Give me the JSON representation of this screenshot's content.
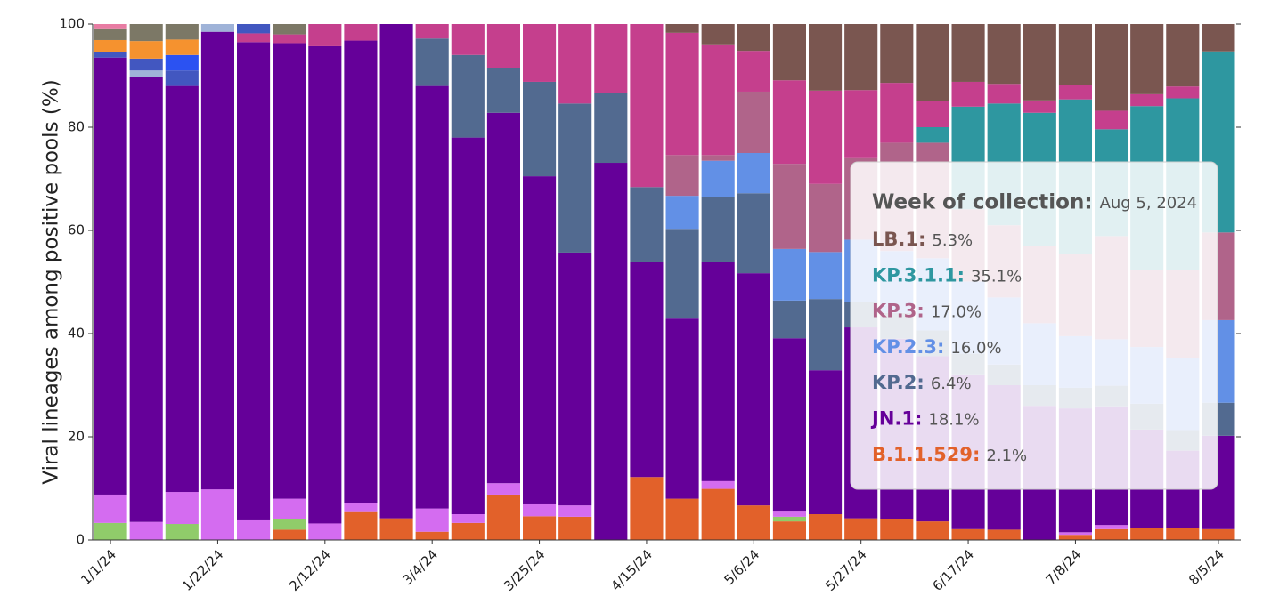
{
  "chart_data": {
    "type": "stacked-bar",
    "y_label": "Viral lineages among positive pools (%)",
    "categories": [
      "1/1/24",
      null,
      null,
      "1/22/24",
      null,
      null,
      "2/12/24",
      null,
      null,
      "3/4/24",
      null,
      null,
      "3/25/24",
      null,
      null,
      "4/15/24",
      null,
      null,
      "5/6/24",
      null,
      null,
      "5/27/24",
      null,
      null,
      "6/17/24",
      null,
      null,
      "7/8/24",
      null,
      null,
      null,
      "8/5/24"
    ],
    "ylim": [
      0,
      100
    ],
    "yticks": [
      0,
      20,
      40,
      60,
      80,
      100
    ],
    "series": [
      {
        "name": "B.1.1.529",
        "color": "#e2612a",
        "values": [
          0,
          0,
          0,
          0,
          0,
          2,
          0,
          5.4,
          4.2,
          1.6,
          3.3,
          8.8,
          4.6,
          4.5,
          0,
          12.2,
          8,
          9.9,
          6.7,
          3.6,
          5,
          4.2,
          4,
          3.6,
          2.1,
          2,
          0,
          1,
          2.1,
          2.4,
          2.3,
          2.1
        ],
        "value_labels": [
          null,
          null,
          null,
          null,
          null,
          null,
          null,
          null,
          null,
          null,
          null,
          null,
          null,
          null,
          null,
          null,
          null,
          null,
          null,
          null,
          null,
          null,
          null,
          null,
          null,
          null,
          null,
          null,
          null,
          null,
          null,
          "2.1%"
        ]
      },
      {
        "color": "#90cc6a",
        "values": [
          3.3,
          0,
          3.1,
          0,
          0,
          2.1,
          0,
          0,
          0,
          0,
          0,
          0,
          0,
          0,
          0,
          0,
          0,
          0,
          0,
          0.9,
          0,
          0,
          0,
          0,
          0,
          0,
          0,
          0,
          0,
          0,
          0,
          0
        ]
      },
      {
        "color": "#d46cf0",
        "values": [
          5.5,
          3.5,
          6.2,
          9.8,
          3.8,
          3.9,
          3.2,
          1.7,
          0,
          4.5,
          1.7,
          2.2,
          2.3,
          2.2,
          0,
          0,
          0,
          1.5,
          0,
          1,
          0,
          0,
          0,
          0,
          0,
          0,
          0,
          0.5,
          0.8,
          0,
          0,
          0
        ]
      },
      {
        "name": "JN.1",
        "color": "#650099",
        "values": [
          84.7,
          86.3,
          78.7,
          88.7,
          92.7,
          88.3,
          92.5,
          89.7,
          95.8,
          81.9,
          73,
          71.8,
          63.6,
          49,
          73.1,
          41.6,
          34.9,
          42.4,
          45,
          33.6,
          27.9,
          37,
          35,
          32,
          30,
          28,
          26,
          24,
          23,
          19,
          15,
          18.1
        ],
        "value_labels": [
          null,
          null,
          null,
          null,
          null,
          null,
          null,
          null,
          null,
          null,
          null,
          null,
          null,
          null,
          null,
          null,
          null,
          null,
          null,
          null,
          null,
          null,
          null,
          null,
          null,
          null,
          null,
          null,
          null,
          null,
          null,
          "18.1%"
        ]
      },
      {
        "name": "KP.2",
        "color": "#526a90",
        "values": [
          0,
          0,
          0,
          0,
          0,
          0,
          0,
          0,
          0,
          9.2,
          16,
          8.7,
          18.3,
          28.9,
          13.6,
          14.6,
          17.4,
          12.6,
          15.5,
          7.3,
          13.8,
          5,
          5,
          5,
          4,
          4,
          4,
          4,
          4,
          5,
          4,
          6.4
        ],
        "value_labels": [
          null,
          null,
          null,
          null,
          null,
          null,
          null,
          null,
          null,
          null,
          null,
          null,
          null,
          null,
          null,
          null,
          null,
          null,
          null,
          null,
          null,
          null,
          null,
          null,
          null,
          null,
          null,
          null,
          null,
          null,
          null,
          "6.4%"
        ]
      },
      {
        "name": "KP.2.3",
        "color": "#6290e6",
        "values": [
          0,
          0,
          0,
          0,
          0,
          0,
          0,
          0,
          0,
          0,
          0,
          0,
          0,
          0,
          0,
          0,
          6.4,
          7.1,
          7.8,
          10,
          9.1,
          12,
          12,
          14,
          14,
          13,
          12,
          10,
          9,
          11,
          14,
          16.0
        ],
        "value_labels": [
          null,
          null,
          null,
          null,
          null,
          null,
          null,
          null,
          null,
          null,
          null,
          null,
          null,
          null,
          null,
          null,
          null,
          null,
          null,
          null,
          null,
          null,
          null,
          null,
          null,
          null,
          null,
          null,
          null,
          null,
          null,
          "16.0%"
        ]
      },
      {
        "name": "KP.3",
        "color": "#b0648a",
        "values": [
          0,
          0,
          0,
          0,
          0,
          0,
          0,
          0,
          0,
          0,
          0,
          0,
          0,
          0,
          0,
          0,
          7.9,
          1.1,
          11.9,
          16.5,
          13.2,
          15.8,
          21,
          22.4,
          14,
          14,
          15,
          16,
          20,
          15,
          17,
          17.0
        ],
        "value_labels": [
          null,
          null,
          null,
          null,
          null,
          null,
          null,
          null,
          null,
          null,
          null,
          null,
          null,
          null,
          null,
          null,
          null,
          null,
          null,
          null,
          null,
          null,
          null,
          null,
          null,
          null,
          null,
          null,
          null,
          null,
          null,
          "17.0%"
        ]
      },
      {
        "name": "KP.3.1.1",
        "color": "#2e97a0",
        "values": [
          0,
          0,
          0,
          0,
          0,
          0,
          0,
          0,
          0,
          0,
          0,
          0,
          0,
          0,
          0,
          0,
          0,
          0,
          0,
          0,
          0,
          0,
          0,
          3,
          19.9,
          23.6,
          25.8,
          29.9,
          20.7,
          31.7,
          33.3,
          35.1
        ],
        "value_labels": [
          null,
          null,
          null,
          null,
          null,
          null,
          null,
          null,
          null,
          null,
          null,
          null,
          null,
          null,
          null,
          null,
          null,
          null,
          null,
          null,
          null,
          null,
          null,
          null,
          null,
          null,
          null,
          null,
          null,
          null,
          null,
          "35.1%"
        ]
      },
      {
        "color": "#c53f8d",
        "values": [
          0,
          0,
          0,
          0,
          1.7,
          1.7,
          4.3,
          3.2,
          0,
          2.8,
          6,
          8.5,
          11.2,
          15.4,
          13.3,
          31.6,
          23.7,
          21.3,
          7.9,
          16.2,
          18.1,
          13.2,
          11.6,
          5,
          4.8,
          3.8,
          2.4,
          2.8,
          3.6,
          2.3,
          2.3,
          0
        ]
      },
      {
        "name": "LB.1",
        "color": "#7a5650",
        "values": [
          0,
          0,
          0,
          0,
          0,
          0,
          0,
          0,
          0,
          0,
          0,
          0,
          0,
          0,
          0,
          0,
          1.7,
          4.1,
          5.2,
          10.9,
          12.9,
          12.8,
          11.4,
          15,
          11.2,
          11.6,
          14.8,
          11.8,
          16.8,
          13.6,
          12.1,
          5.3
        ],
        "value_labels": [
          null,
          null,
          null,
          null,
          null,
          null,
          null,
          null,
          null,
          null,
          null,
          null,
          null,
          null,
          null,
          null,
          null,
          null,
          null,
          null,
          null,
          null,
          null,
          null,
          null,
          null,
          null,
          null,
          null,
          null,
          null,
          "5.3%"
        ]
      },
      {
        "color": "#9fb3d8",
        "values": [
          0,
          1.2,
          0,
          1.5,
          0,
          0,
          0,
          0,
          0,
          0,
          0,
          0,
          0,
          0,
          0,
          0,
          0,
          0,
          0,
          0,
          0,
          0,
          0,
          0,
          0,
          0,
          0,
          0,
          0,
          0,
          0,
          0
        ]
      },
      {
        "color": "#4257c0",
        "values": [
          1,
          2.3,
          3,
          0,
          1.8,
          0,
          0,
          0,
          0,
          0,
          0,
          0,
          0,
          0,
          0,
          0,
          0,
          0,
          0,
          0,
          0,
          0,
          0,
          0,
          0,
          0,
          0,
          0,
          0,
          0,
          0,
          0
        ]
      },
      {
        "color": "#2b52f2",
        "values": [
          0,
          0,
          3,
          0,
          0,
          0,
          0,
          0,
          0,
          0,
          0,
          0,
          0,
          0,
          0,
          0,
          0,
          0,
          0,
          0,
          0,
          0,
          0,
          0,
          0,
          0,
          0,
          0,
          0,
          0,
          0,
          0
        ]
      },
      {
        "color": "#f5922f",
        "values": [
          2.4,
          3.4,
          3,
          0,
          0,
          0,
          0,
          0,
          0,
          0,
          0,
          0,
          0,
          0,
          0,
          0,
          0,
          0,
          0,
          0,
          0,
          0,
          0,
          0,
          0,
          0,
          0,
          0,
          0,
          0,
          0,
          0
        ]
      },
      {
        "color": "#7c7866",
        "values": [
          2.1,
          3.3,
          3,
          0,
          0,
          2,
          0,
          0,
          0,
          0,
          0,
          0,
          0,
          0,
          0,
          0,
          0,
          0,
          0,
          0,
          0,
          0,
          0,
          0,
          0,
          0,
          0,
          0,
          0,
          0,
          0,
          0
        ]
      },
      {
        "color": "#e87ca3",
        "values": [
          1,
          0,
          0,
          0,
          0,
          0,
          0,
          0,
          0,
          0,
          0,
          0,
          0,
          0,
          0,
          0,
          0,
          0,
          0,
          0,
          0,
          0,
          0,
          0,
          0,
          0,
          0,
          0,
          0,
          0,
          0,
          0
        ]
      }
    ],
    "tooltip": {
      "heading": "Week of collection:",
      "week": "Aug 5, 2024"
    }
  }
}
